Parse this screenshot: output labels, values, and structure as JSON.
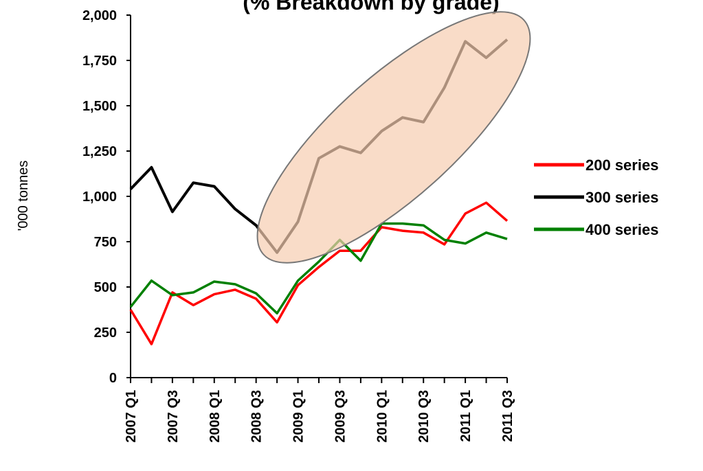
{
  "chart_data": {
    "type": "line",
    "title": "(% Breakdown by grade)",
    "y_label": "'000 tonnes",
    "categories": [
      "2007 Q1",
      null,
      "2007 Q3",
      null,
      "2008 Q1",
      null,
      "2008 Q3",
      null,
      "2009 Q1",
      null,
      "2009 Q3",
      null,
      "2010 Q1",
      null,
      "2010 Q3",
      null,
      "2011 Q1",
      null,
      "2011 Q3"
    ],
    "series": [
      {
        "name": "200 series",
        "color": "#ff0000",
        "values": [
          375,
          185,
          470,
          400,
          460,
          485,
          435,
          305,
          510,
          610,
          700,
          700,
          830,
          810,
          800,
          735,
          905,
          965,
          865
        ]
      },
      {
        "name": "300 series",
        "color": "#000000",
        "values": [
          1040,
          1160,
          915,
          1075,
          1055,
          930,
          840,
          690,
          860,
          1210,
          1275,
          1240,
          1360,
          1435,
          1410,
          1600,
          1855,
          1765,
          1865
        ]
      },
      {
        "name": "400 series",
        "color": "#008000",
        "values": [
          390,
          535,
          455,
          470,
          530,
          515,
          465,
          355,
          535,
          640,
          760,
          645,
          850,
          850,
          840,
          760,
          740,
          800,
          765
        ]
      }
    ],
    "ylim": [
      0,
      2000
    ],
    "yticks": [
      0,
      250,
      500,
      750,
      {
        "value": 1000,
        "label": "1,000"
      },
      {
        "value": 1250,
        "label": "1,250"
      },
      {
        "value": 1500,
        "label": "1,500"
      },
      {
        "value": 1750,
        "label": "1,750"
      },
      {
        "value": 2000,
        "label": "2,000"
      }
    ],
    "legend": "right"
  }
}
